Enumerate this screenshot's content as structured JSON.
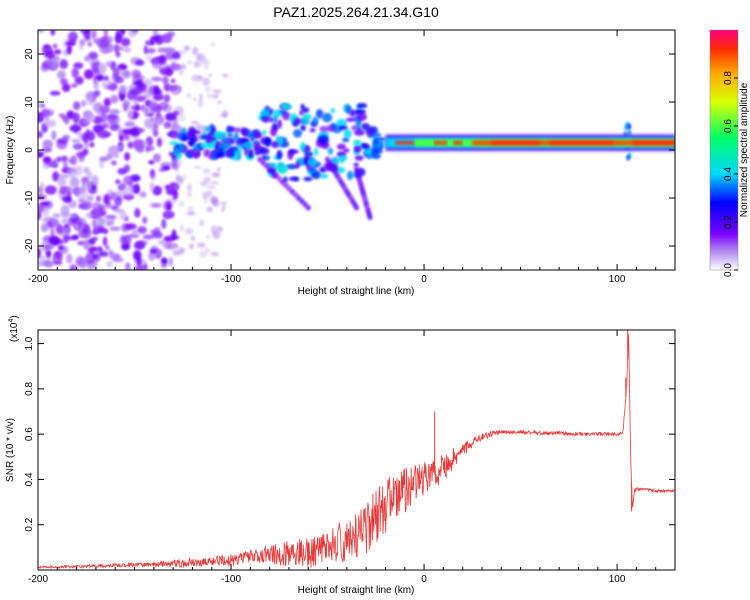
{
  "title": "PAZ1.2025.264.21.34.G10",
  "colors": {
    "snr_line": "#e83a3a",
    "ridge_peak": "#e83030",
    "background": "#ffffff",
    "axis": "#000000"
  },
  "chart_data": [
    {
      "type": "heatmap",
      "name": "spectrogram",
      "xlabel": "Height of straight line (km)",
      "ylabel": "Frequency (Hz)",
      "xlim": [
        -200,
        130
      ],
      "ylim": [
        -25,
        25
      ],
      "xticks": [
        -200,
        -100,
        0,
        100
      ],
      "yticks": [
        -20,
        -10,
        0,
        10,
        20
      ],
      "ridge_frequency_hz": 1.5,
      "colorbar": {
        "label": "Normalized spectral amplitude",
        "range": [
          0.0,
          1.0
        ],
        "ticks": [
          "0.0",
          "0.2",
          "0.4",
          "0.6",
          "0.8"
        ],
        "stops": [
          {
            "v": 0.0,
            "c": "#ffffff"
          },
          {
            "v": 0.08,
            "c": "#b088f0"
          },
          {
            "v": 0.15,
            "c": "#7a00ff"
          },
          {
            "v": 0.28,
            "c": "#0000ff"
          },
          {
            "v": 0.4,
            "c": "#00d8ff"
          },
          {
            "v": 0.55,
            "c": "#00ff66"
          },
          {
            "v": 0.7,
            "c": "#d8ff00"
          },
          {
            "v": 0.82,
            "c": "#ffaa00"
          },
          {
            "v": 0.92,
            "c": "#ff2a00"
          },
          {
            "v": 1.0,
            "c": "#ff0080"
          }
        ]
      }
    },
    {
      "type": "line",
      "name": "snr",
      "xlabel": "Height of straight line (km)",
      "ylabel": "SNR (10 * v/v)",
      "exponent_label": "(x10",
      "exponent": "4",
      "exponent_close": ")",
      "xlim": [
        -200,
        130
      ],
      "ylim": [
        0,
        1.06
      ],
      "xticks": [
        -200,
        -100,
        0,
        100
      ],
      "yticks": [
        "0.2",
        "0.4",
        "0.6",
        "0.8",
        "1.0"
      ],
      "series": [
        {
          "name": "SNR",
          "x": [
            -200,
            -180,
            -160,
            -140,
            -125,
            -110,
            -100,
            -90,
            -80,
            -70,
            -60,
            -50,
            -40,
            -35,
            -30,
            -25,
            -20,
            -15,
            -10,
            -5,
            0,
            5,
            10,
            15,
            20,
            30,
            40,
            50,
            60,
            70,
            80,
            90,
            100,
            103,
            105,
            106,
            107,
            108,
            109,
            110,
            115,
            120,
            130
          ],
          "y": [
            0.012,
            0.015,
            0.02,
            0.025,
            0.03,
            0.04,
            0.045,
            0.06,
            0.07,
            0.07,
            0.07,
            0.11,
            0.13,
            0.15,
            0.2,
            0.22,
            0.28,
            0.33,
            0.35,
            0.38,
            0.4,
            0.42,
            0.45,
            0.49,
            0.53,
            0.59,
            0.61,
            0.61,
            0.605,
            0.605,
            0.6,
            0.6,
            0.6,
            0.6,
            0.82,
            1.05,
            0.5,
            0.27,
            0.35,
            0.36,
            0.355,
            0.35,
            0.35
          ],
          "noise_amplitude": [
            0.004,
            0.006,
            0.008,
            0.01,
            0.02,
            0.02,
            0.03,
            0.03,
            0.04,
            0.06,
            0.07,
            0.07,
            0.1,
            0.12,
            0.14,
            0.14,
            0.14,
            0.1,
            0.1,
            0.08,
            0.08,
            0.07,
            0.06,
            0.05,
            0.03,
            0.015,
            0.01,
            0.008,
            0.008,
            0.008,
            0.008,
            0.008,
            0.008,
            0.01,
            0.02,
            0.0,
            0.0,
            0.0,
            0.01,
            0.008,
            0.006,
            0.006,
            0.006
          ]
        }
      ],
      "spikes": [
        {
          "x": 5.5,
          "y": 0.7
        },
        {
          "x": 104.5,
          "y": 0.85
        },
        {
          "x": 105.5,
          "y": 1.06
        },
        {
          "x": 107.5,
          "y": 0.26
        }
      ]
    }
  ]
}
